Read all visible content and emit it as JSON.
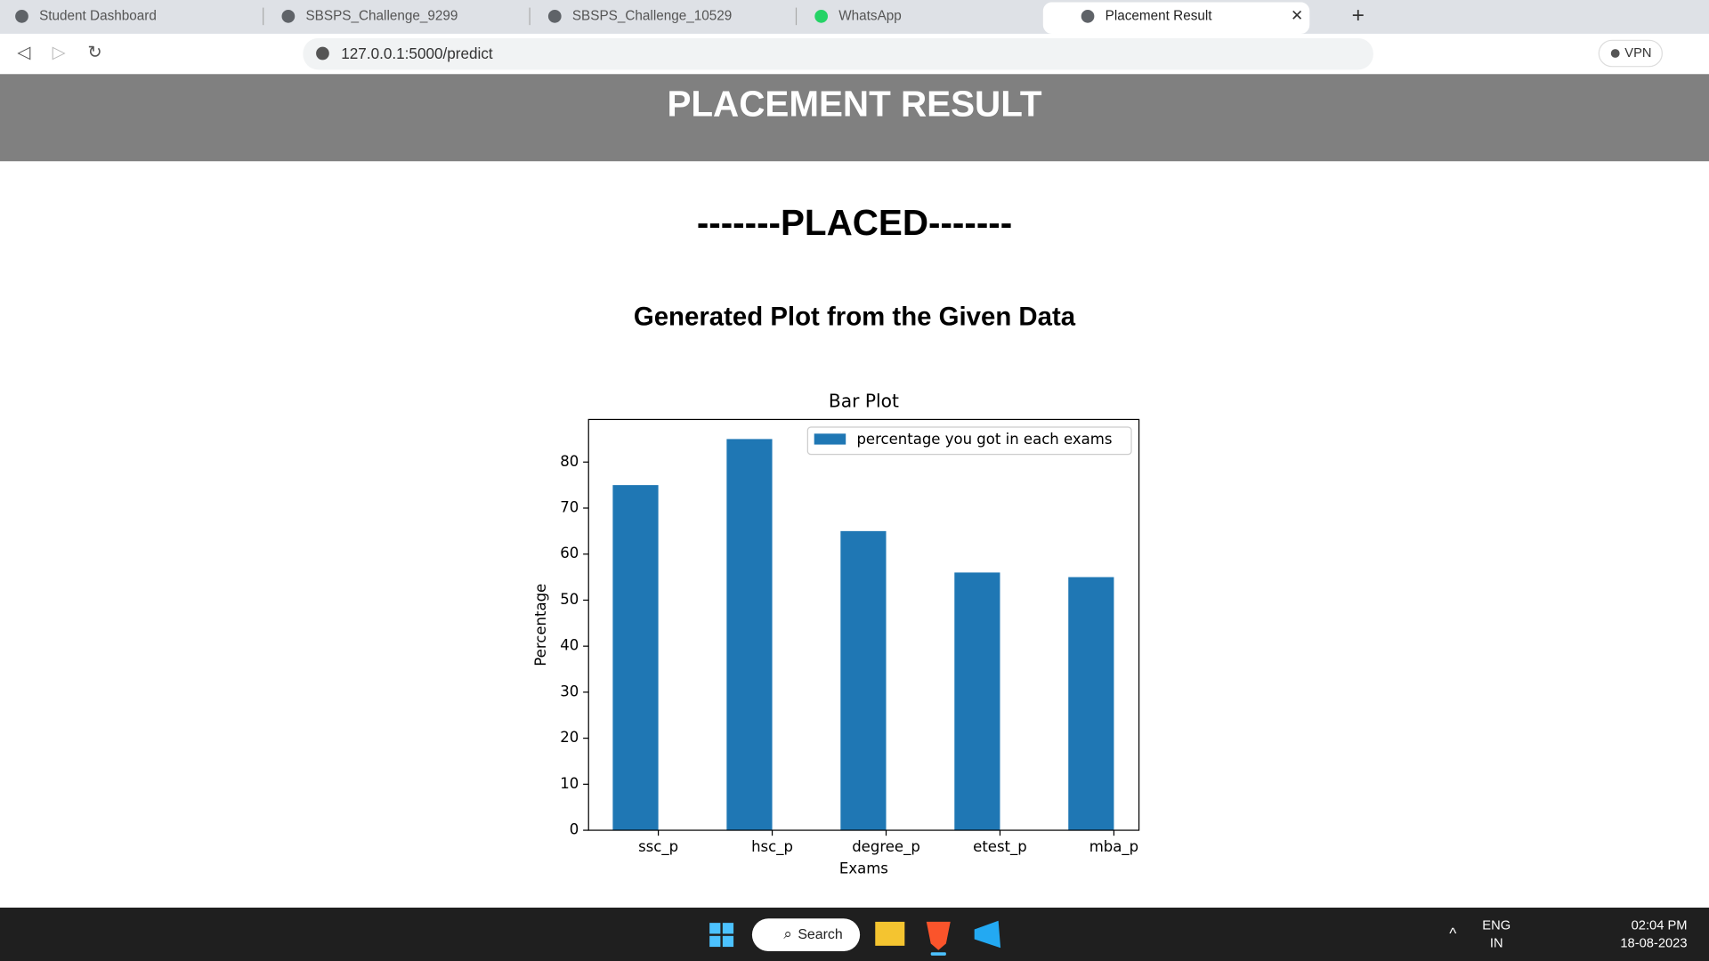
{
  "browser": {
    "tabs": [
      "Student Dashboard",
      "SBSPS_Challenge_9299",
      "SBSPS_Challenge_10529",
      "WhatsApp",
      "Placement Result"
    ],
    "active_tab": 4,
    "url": "127.0.0.1:5000/predict",
    "vpn": "VPN"
  },
  "page": {
    "header": "PLACEMENT RESULT",
    "status": "-------PLACED-------",
    "heading": "Generated Plot from the Given Data"
  },
  "chart_data": {
    "type": "bar",
    "title": "Bar Plot",
    "x_label": "Exams",
    "y_label": "Percentage",
    "categories": [
      "ssc_p",
      "hsc_p",
      "degree_p",
      "etest_p",
      "mba_p"
    ],
    "series": [
      {
        "name": "percentage you got in each exams",
        "color": "#1f77b4",
        "values": [
          75,
          85,
          65,
          56,
          55
        ]
      }
    ],
    "ylim": [
      0,
      89.25
    ],
    "yticks": [
      0,
      10,
      20,
      30,
      40,
      50,
      60,
      70,
      80
    ],
    "grid": false,
    "legend": "upper right"
  },
  "taskbar": {
    "search": "Search",
    "language": [
      "ENG",
      "IN"
    ],
    "time": "02:04 PM",
    "date": "18-08-2023"
  }
}
